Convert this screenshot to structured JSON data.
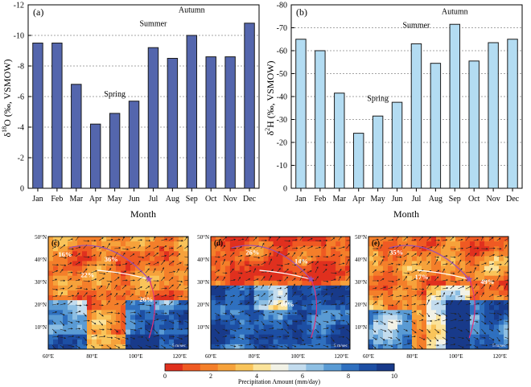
{
  "chart_data": [
    {
      "type": "bar",
      "panel_label": "(a)",
      "categories": [
        "Jan",
        "Feb",
        "Mar",
        "Apr",
        "May",
        "Jun",
        "Jul",
        "Aug",
        "Sep",
        "Oct",
        "Nov",
        "Dec"
      ],
      "values": [
        -9.5,
        -9.5,
        -6.8,
        -4.2,
        -4.9,
        -5.7,
        -9.2,
        -8.5,
        -10.0,
        -8.6,
        -8.6,
        -10.8
      ],
      "ylim": [
        0,
        -12
      ],
      "yticks": [
        0,
        -2,
        -4,
        -6,
        -8,
        -10,
        -12
      ],
      "ytick_labels": [
        "0",
        "-2",
        "-4",
        "-6",
        "-8",
        "-10",
        "-12"
      ],
      "ylabel": "δ18O (‰, VSMOW)",
      "ylabel_main": "δ",
      "ylabel_sup": "18",
      "ylabel_rest": "O (‰, VSMOW)",
      "xlabel": "Month",
      "grid": "dotted horizontal",
      "bar_color": "#5466ad",
      "annotations": [
        {
          "text": "Spring",
          "category": "May",
          "value": -6.0
        },
        {
          "text": "Summer",
          "category": "Jul",
          "value": -10.6
        },
        {
          "text": "Autumn",
          "category": "Sep",
          "value": -11.5
        }
      ]
    },
    {
      "type": "bar",
      "panel_label": "(b)",
      "categories": [
        "Jan",
        "Feb",
        "Mar",
        "Apr",
        "May",
        "Jun",
        "Jul",
        "Aug",
        "Sep",
        "Oct",
        "Nov",
        "Dec"
      ],
      "values": [
        -65,
        -60,
        -41.5,
        -24,
        -31.5,
        -37.5,
        -63,
        -54.5,
        -71.5,
        -55.5,
        -63.5,
        -65
      ],
      "ylim": [
        0,
        -80
      ],
      "yticks": [
        0,
        -10,
        -20,
        -30,
        -40,
        -50,
        -60,
        -70,
        -80
      ],
      "ytick_labels": [
        "0",
        "-10",
        "-20",
        "-30",
        "-40",
        "-50",
        "-60",
        "-70",
        "-80"
      ],
      "ylabel": "δ2H (‰, VSMOW)",
      "ylabel_main": "δ",
      "ylabel_sup": "2",
      "ylabel_rest": "H (‰, VSMOW)",
      "xlabel": "Month",
      "grid": "dotted horizontal",
      "bar_color": "#b3dcf2",
      "annotations": [
        {
          "text": "Spring",
          "category": "May",
          "value": -38
        },
        {
          "text": "Summer",
          "category": "Jul",
          "value": -70
        },
        {
          "text": "Autumn",
          "category": "Sep",
          "value": -76
        }
      ]
    },
    {
      "type": "heatmap",
      "description_kind": "precipitation map with wind vectors and trajectories",
      "panels": [
        {
          "label": "(c)",
          "trajectory_labels": [
            {
              "text": "16%"
            },
            {
              "text": "36%"
            },
            {
              "text": "22%"
            },
            {
              "text": "26%"
            }
          ],
          "wind_scale": "5 m/sec"
        },
        {
          "label": "(d)",
          "trajectory_labels": [
            {
              "text": "26%"
            },
            {
              "text": "14%"
            },
            {
              "text": "60%"
            }
          ],
          "wind_scale": "5 m/sec"
        },
        {
          "label": "(e)",
          "trajectory_labels": [
            {
              "text": "35%"
            },
            {
              "text": "17%"
            },
            {
              "text": "49%"
            }
          ],
          "wind_scale": "5 m/sec"
        }
      ],
      "x_ticks": [
        "60°E",
        "80°E",
        "100°E",
        "120°E"
      ],
      "y_ticks": [
        "10°N",
        "20°N",
        "30°N",
        "40°N",
        "50°N"
      ],
      "colorbar": {
        "title": "Precipitation Amount (mm/day)",
        "ticks": [
          "0",
          "2",
          "4",
          "6",
          "8",
          "10"
        ],
        "colors": [
          "#e0301e",
          "#ef5a23",
          "#f47f2a",
          "#f6a23b",
          "#f9c45a",
          "#fbe39a",
          "#f2f2e6",
          "#c3dcee",
          "#8ebfe3",
          "#5a9bd4",
          "#2f70bf",
          "#1d4fa4",
          "#183a8a"
        ]
      }
    }
  ]
}
